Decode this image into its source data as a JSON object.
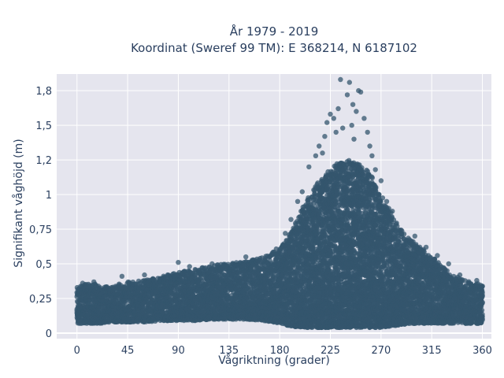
{
  "chart_data": {
    "type": "scatter",
    "title_line1": "År 1979 - 2019",
    "title_line2": "Koordinat (Sweref 99 TM): E 368214, N 6187102",
    "xlabel": "Vågriktning (grader)",
    "ylabel": "Signifikant våghöjd (m)",
    "xlim": [
      -18,
      368
    ],
    "ylim": [
      -0.04,
      1.87
    ],
    "x_ticks": [
      0,
      45,
      90,
      135,
      180,
      225,
      270,
      315,
      360
    ],
    "x_tick_labels": [
      "0",
      "45",
      "90",
      "135",
      "180",
      "225",
      "270",
      "315",
      "360"
    ],
    "y_ticks": [
      0,
      0.25,
      0.5,
      0.75,
      1,
      1.25,
      1.5,
      1.75
    ],
    "y_tick_labels": [
      "0",
      "0,25",
      "0,5",
      "0,75",
      "1",
      "1,2",
      "1,5",
      "1,8"
    ],
    "grid": true,
    "background_color": "#e5e5ee",
    "marker_color": "#34566e",
    "envelope": {
      "x": [
        0,
        10,
        20,
        30,
        45,
        60,
        75,
        90,
        105,
        120,
        135,
        150,
        165,
        180,
        190,
        200,
        210,
        220,
        225,
        230,
        240,
        250,
        255,
        260,
        270,
        280,
        290,
        300,
        315,
        330,
        345,
        360
      ],
      "upper": [
        0.33,
        0.36,
        0.35,
        0.34,
        0.37,
        0.38,
        0.41,
        0.44,
        0.46,
        0.49,
        0.5,
        0.52,
        0.55,
        0.62,
        0.72,
        0.9,
        1.05,
        1.15,
        1.2,
        1.22,
        1.25,
        1.22,
        1.2,
        1.15,
        1.0,
        0.85,
        0.72,
        0.65,
        0.55,
        0.45,
        0.38,
        0.35
      ],
      "lower": [
        0.07,
        0.07,
        0.07,
        0.08,
        0.08,
        0.08,
        0.09,
        0.09,
        0.09,
        0.1,
        0.1,
        0.1,
        0.09,
        0.07,
        0.05,
        0.04,
        0.04,
        0.04,
        0.04,
        0.04,
        0.04,
        0.04,
        0.04,
        0.04,
        0.04,
        0.05,
        0.06,
        0.07,
        0.07,
        0.07,
        0.07,
        0.07
      ]
    },
    "outliers": [
      {
        "x": 215,
        "y": 1.35
      },
      {
        "x": 220,
        "y": 1.42
      },
      {
        "x": 222,
        "y": 1.52
      },
      {
        "x": 225,
        "y": 1.58
      },
      {
        "x": 228,
        "y": 1.55
      },
      {
        "x": 230,
        "y": 1.45
      },
      {
        "x": 232,
        "y": 1.62
      },
      {
        "x": 234,
        "y": 1.83
      },
      {
        "x": 240,
        "y": 1.72
      },
      {
        "x": 242,
        "y": 1.81
      },
      {
        "x": 245,
        "y": 1.65
      },
      {
        "x": 248,
        "y": 1.6
      },
      {
        "x": 250,
        "y": 1.75
      },
      {
        "x": 252,
        "y": 1.74
      },
      {
        "x": 255,
        "y": 1.55
      },
      {
        "x": 258,
        "y": 1.45
      },
      {
        "x": 260,
        "y": 1.35
      },
      {
        "x": 206,
        "y": 1.2
      },
      {
        "x": 212,
        "y": 1.28
      },
      {
        "x": 218,
        "y": 1.3
      },
      {
        "x": 236,
        "y": 1.48
      },
      {
        "x": 244,
        "y": 1.5
      },
      {
        "x": 246,
        "y": 1.4
      },
      {
        "x": 262,
        "y": 1.28
      },
      {
        "x": 265,
        "y": 1.18
      },
      {
        "x": 270,
        "y": 1.1
      },
      {
        "x": 275,
        "y": 0.95
      },
      {
        "x": 280,
        "y": 0.88
      },
      {
        "x": 200,
        "y": 1.02
      },
      {
        "x": 196,
        "y": 0.95
      },
      {
        "x": 190,
        "y": 0.82
      },
      {
        "x": 185,
        "y": 0.72
      },
      {
        "x": 300,
        "y": 0.7
      },
      {
        "x": 310,
        "y": 0.62
      },
      {
        "x": 320,
        "y": 0.56
      },
      {
        "x": 330,
        "y": 0.5
      },
      {
        "x": 340,
        "y": 0.42
      },
      {
        "x": 355,
        "y": 0.38
      },
      {
        "x": 150,
        "y": 0.55
      },
      {
        "x": 120,
        "y": 0.5
      },
      {
        "x": 90,
        "y": 0.51
      },
      {
        "x": 100,
        "y": 0.48
      },
      {
        "x": 60,
        "y": 0.42
      },
      {
        "x": 40,
        "y": 0.41
      },
      {
        "x": 15,
        "y": 0.37
      },
      {
        "x": 5,
        "y": 0.36
      }
    ]
  }
}
